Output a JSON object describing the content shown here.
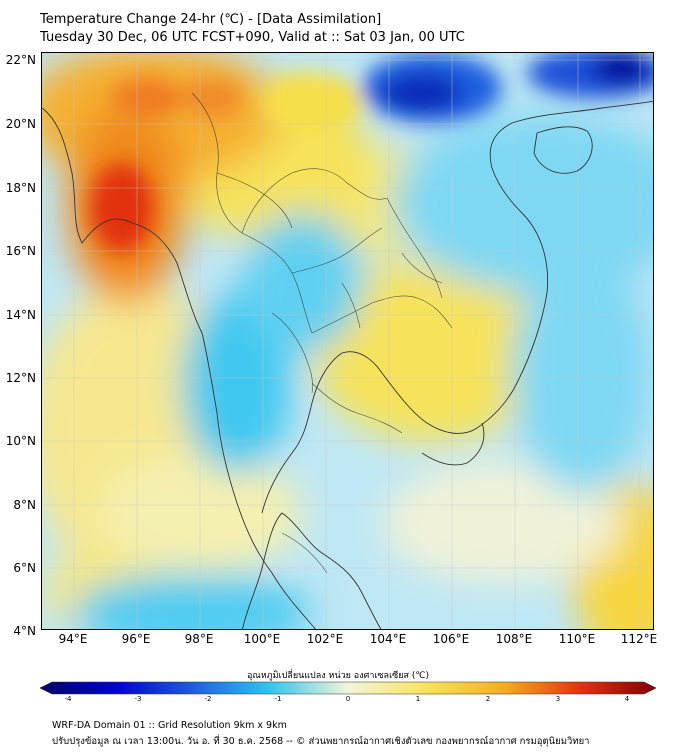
{
  "header": {
    "title": "Temperature Change 24-hr (℃) - [Data Assimilation]",
    "subtitle": "Tuesday 30 Dec, 06 UTC FCST+090, Valid at :: Sat 03 Jan, 00 UTC"
  },
  "map": {
    "lat_labels": [
      "22°N",
      "20°N",
      "18°N",
      "16°N",
      "14°N",
      "12°N",
      "10°N",
      "8°N",
      "6°N",
      "4°N"
    ],
    "lon_labels": [
      "94°E",
      "96°E",
      "98°E",
      "100°E",
      "102°E",
      "104°E",
      "106°E",
      "108°E",
      "110°E",
      "112°E"
    ],
    "lat_range": [
      4,
      22.2
    ],
    "lon_range": [
      93,
      112.5
    ]
  },
  "colorbar": {
    "label": "อุณหภูมิเปลี่ยนแปลง หน่วย องศาเซลเซียส (℃)",
    "ticks": [
      "-4",
      "-3",
      "-2",
      "-1",
      "0",
      "1",
      "2",
      "3",
      "4"
    ],
    "min": -4,
    "max": 4
  },
  "footer": {
    "line1": "WRF-DA Domain 01 :: Grid Resolution 9km x 9km",
    "line2": "ปรับปรุงข้อมูล ณ เวลา 13:00น. วัน อ. ที่ 30 ธ.ค. 2568 -- © ส่วนพยากรณ์อากาศเชิงตัวเลข กองพยากรณ์อากาศ กรมอุตุนิยมวิทยา"
  },
  "colors": {
    "cold_max": "#000099",
    "cold": "#1f5fe0",
    "cool": "#2ec4f0",
    "neutral": "#f2f5d8",
    "warm": "#f7e35a",
    "hot": "#f08a1a",
    "hot_max": "#c00000"
  }
}
